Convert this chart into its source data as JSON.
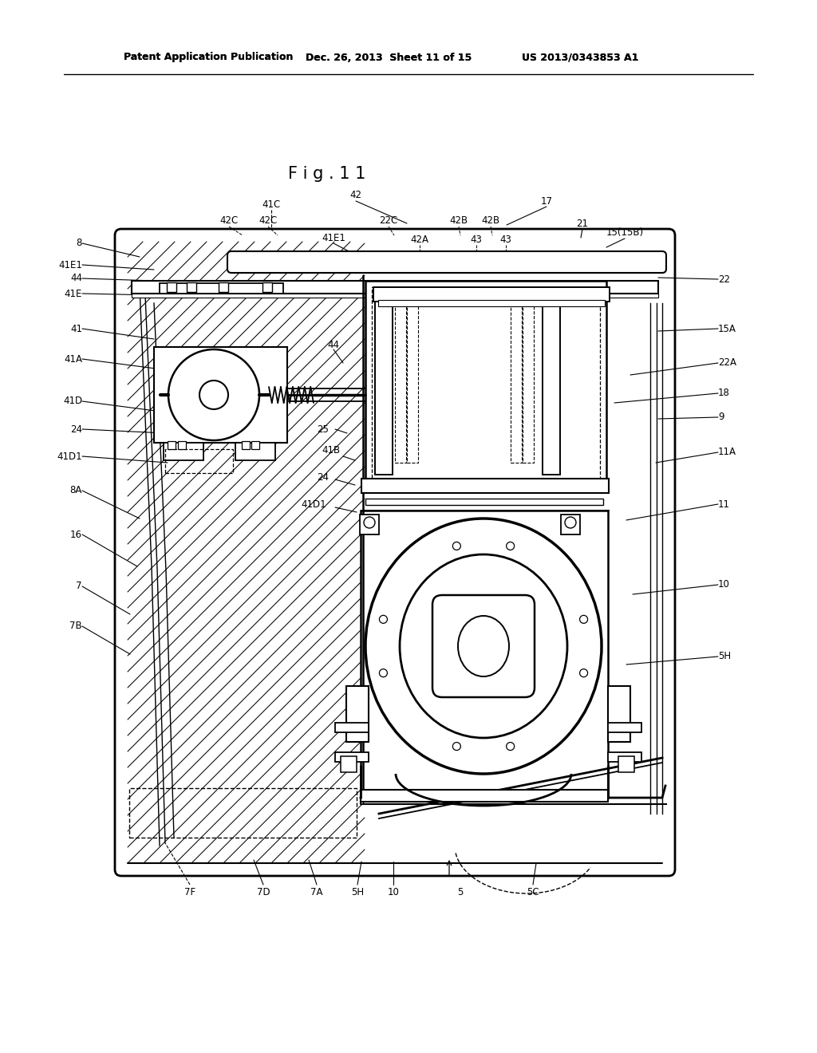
{
  "bg_color": "#ffffff",
  "header_left": "Patent Application Publication",
  "header_mid": "Dec. 26, 2013  Sheet 11 of 15",
  "header_right": "US 2013/0343853 A1",
  "fig_title": "F i g . 1 1"
}
